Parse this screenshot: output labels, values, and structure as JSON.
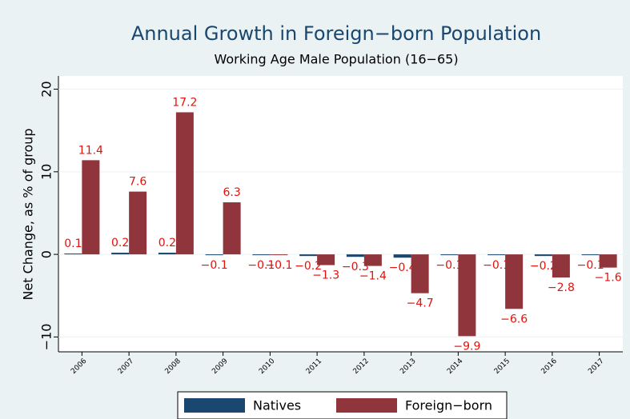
{
  "chart_data": {
    "type": "bar",
    "title": "Annual Growth in Foreign−born Population",
    "subtitle": "Working Age Male Population (16−65)",
    "y_label": "Net Change, as % of group",
    "categories": [
      "2006",
      "2007",
      "2008",
      "2009",
      "2010",
      "2011",
      "2012",
      "2013",
      "2014",
      "2015",
      "2016",
      "2017"
    ],
    "series": [
      {
        "name": "Natives",
        "color": "#1a476f",
        "values": [
          0.1,
          0.2,
          0.2,
          -0.1,
          -0.1,
          -0.2,
          -0.3,
          -0.4,
          -0.1,
          -0.1,
          -0.2,
          -0.1
        ],
        "value_labels": [
          "0.1",
          "0.2",
          "0.2",
          "−0.1",
          "−0.1",
          "−0.2",
          "−0.3",
          "−0.4",
          "−0.1",
          "−0.1",
          "−0.2",
          "−0.1"
        ]
      },
      {
        "name": "Foreign−born",
        "color": "#90353b",
        "values": [
          11.4,
          7.6,
          17.2,
          6.3,
          -0.1,
          -1.3,
          -1.4,
          -4.7,
          -9.9,
          -6.6,
          -2.8,
          -1.6
        ],
        "value_labels": [
          "11.4",
          "7.6",
          "17.2",
          "6.3",
          "−0.1",
          "−1.3",
          "−1.4",
          "−4.7",
          "−9.9",
          "−6.6",
          "−2.8",
          "−1.6"
        ]
      }
    ],
    "value_label_color": "#e3120b",
    "ylim": [
      -11.8,
      21.6
    ],
    "yticks": [
      20,
      10,
      0,
      {
        "value": -10,
        "label": "−10"
      }
    ],
    "grid": true,
    "legend": "bottom"
  }
}
